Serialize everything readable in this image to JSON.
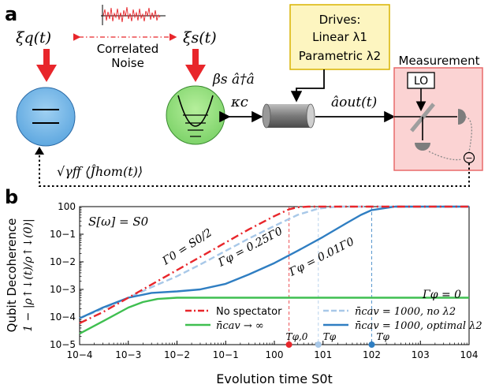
{
  "panel_a": {
    "label": "a",
    "xi_q": "ξq(t)",
    "xi_s": "ξs(t)",
    "correlated": "Correlated",
    "noise": "Noise",
    "coupling": "βs â†â",
    "kappa": "κc",
    "drives_title": "Drives:",
    "drives_linear": "Linear λ1",
    "drives_parametric": "Parametric λ2",
    "a_out": "âout(t)",
    "measurement": "Measurement",
    "lo": "LO",
    "feedback": "√γff ⟨Ĵhom(t)⟩",
    "minus": "−"
  },
  "panel_b": {
    "label": "b",
    "ylabel_main": "Qubit Decoherence",
    "ylabel_formula": "1 − |ρ↑↓(t)/ρ↑↓(0)|",
    "xlabel": "Evolution time S0t",
    "spectrum_note": "S[ω] = S0",
    "ann_gamma0": "Γ0 = S0/2",
    "ann_gamma025": "Γφ = 0.25Γ0",
    "ann_gamma001": "Γφ = 0.01Γ0",
    "ann_gamma_zero": "Γφ = 0",
    "t_phi0": "Tφ,0",
    "t_phi1": "Tφ",
    "t_phi2": "Tφ"
  },
  "chart_data": {
    "type": "line",
    "xscale": "log",
    "yscale": "log",
    "xlim": [
      0.0001,
      10000
    ],
    "ylim": [
      1e-05,
      1
    ],
    "x_ticks": [
      "10−4",
      "10−3",
      "10−2",
      "10−1",
      "100",
      "101",
      "102",
      "103",
      "104"
    ],
    "y_ticks": [
      "10−5",
      "10−4",
      "10−3",
      "10−2",
      "10−1",
      "100"
    ],
    "legend_position": "bottom-right",
    "series": [
      {
        "name": "No spectator",
        "color": "#e8262b",
        "style": "dash-dot",
        "x": [
          0.0001,
          0.0003,
          0.001,
          0.003,
          0.01,
          0.03,
          0.1,
          0.3,
          1,
          2,
          3,
          5,
          10,
          100,
          10000
        ],
        "y": [
          6e-05,
          0.00015,
          0.0005,
          0.0015,
          0.005,
          0.015,
          0.05,
          0.15,
          0.45,
          0.8,
          0.95,
          1,
          1,
          1,
          1
        ]
      },
      {
        "name": "n̄cav = 1000, no λ2",
        "color": "#a8c8e8",
        "style": "dashed",
        "x": [
          0.0001,
          0.0003,
          0.001,
          0.003,
          0.01,
          0.03,
          0.1,
          0.3,
          1,
          3,
          8,
          20,
          100,
          10000
        ],
        "y": [
          9e-05,
          0.0002,
          0.0005,
          0.0012,
          0.003,
          0.008,
          0.025,
          0.07,
          0.2,
          0.5,
          0.85,
          1,
          1,
          1
        ]
      },
      {
        "name": "n̄cav = 1000, optimal λ2",
        "color": "#2f7ec2",
        "style": "solid",
        "x": [
          0.0001,
          0.0003,
          0.001,
          0.003,
          0.01,
          0.03,
          0.1,
          0.3,
          1,
          3,
          10,
          30,
          60,
          100,
          300,
          10000
        ],
        "y": [
          9e-05,
          0.00022,
          0.0005,
          0.00075,
          0.00085,
          0.001,
          0.0016,
          0.0035,
          0.009,
          0.025,
          0.08,
          0.25,
          0.5,
          0.75,
          1,
          1
        ]
      },
      {
        "name": "n̄cav → ∞",
        "color": "#3fbf50",
        "style": "solid",
        "x": [
          0.0001,
          0.0003,
          0.001,
          0.002,
          0.004,
          0.01,
          0.1,
          1,
          10000
        ],
        "y": [
          2.5e-05,
          7e-05,
          0.00022,
          0.00035,
          0.00045,
          0.0005,
          0.0005,
          0.0005,
          0.0005
        ]
      }
    ],
    "markers": [
      {
        "label": "Tφ,0",
        "x": 2,
        "color": "#e8262b"
      },
      {
        "label": "Tφ",
        "x": 8,
        "color": "#a8c8e8"
      },
      {
        "label": "Tφ",
        "x": 100,
        "color": "#2f7ec2"
      }
    ]
  }
}
